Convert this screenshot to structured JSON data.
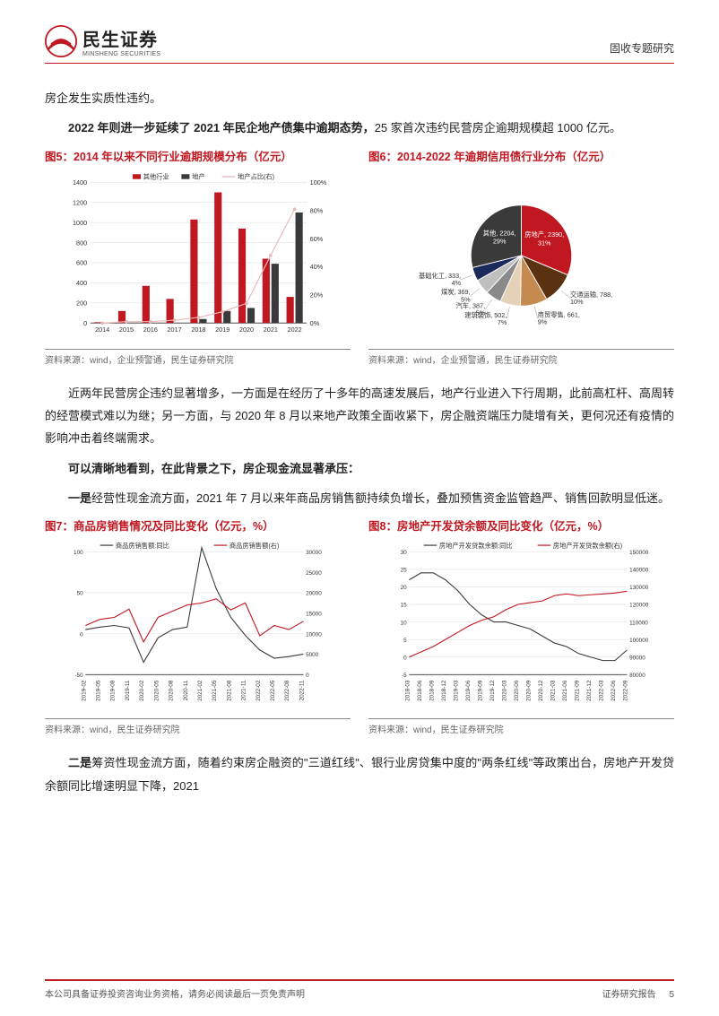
{
  "header": {
    "logo_main": "民生证券",
    "logo_sub": "MINSHENG SECURITIES",
    "right": "固收专题研究"
  },
  "para1": "房企发生实质性违约。",
  "para2a": "2022 年则进一步延续了 2021 年民企地产债集中逾期态势，",
  "para2b": "25 家首次违约民营房企逾期规模超 1000 亿元。",
  "chart5": {
    "title": "图5：2014 年以来不同行业逾期规模分布（亿元）",
    "type": "bar+line",
    "legend": [
      "其他行业",
      "地产",
      "地产占比(右)"
    ],
    "legend_colors": [
      "#c01720",
      "#3a3a3a",
      "#e9b9ba"
    ],
    "categories": [
      "2014",
      "2015",
      "2016",
      "2017",
      "2018",
      "2019",
      "2020",
      "2021",
      "2022"
    ],
    "series_other": [
      8,
      120,
      370,
      240,
      1030,
      1300,
      940,
      640,
      260
    ],
    "series_realestate": [
      0,
      0,
      0,
      0,
      40,
      120,
      150,
      590,
      1100
    ],
    "series_ratio_pct": [
      0,
      1,
      1,
      2,
      4,
      8,
      14,
      48,
      81
    ],
    "y1_max": 1400,
    "y1_step": 200,
    "y2_max": 100,
    "y2_step": 20,
    "bar_colors": [
      "#c01720",
      "#3a3a3a"
    ],
    "line_color": "#e9b9ba",
    "grid_color": "#d8d8d8",
    "axis_fontsize": 8,
    "source": "资料来源：wind，企业预警通，民生证券研究院"
  },
  "chart6": {
    "title": "图6：2014-2022 年逾期信用债行业分布（亿元）",
    "type": "pie",
    "slices": [
      {
        "label": "房地产, 2390, 31%",
        "value": 2390,
        "color": "#c01720"
      },
      {
        "label": "交通运输, 788, 10%",
        "value": 788,
        "color": "#5a3210"
      },
      {
        "label": "商贸零售, 661, 9%",
        "value": 661,
        "color": "#c58a50"
      },
      {
        "label": "建筑装饰, 502, 7%",
        "value": 502,
        "color": "#e5d0b8"
      },
      {
        "label": "汽车, 387, 5%",
        "value": 387,
        "color": "#8a8a8a"
      },
      {
        "label": "煤炭, 369, 5%",
        "value": 369,
        "color": "#bfbfbf"
      },
      {
        "label": "基础化工, 333, 4%",
        "value": 333,
        "color": "#1a2a5a"
      },
      {
        "label": "其他, 2204, 29%",
        "value": 2204,
        "color": "#3a3a3a"
      }
    ],
    "label_fontsize": 8,
    "label_color": "#ffffff",
    "label_color_alt": "#333333",
    "source": "资料来源：wind，企业预警通，民生证券研究院"
  },
  "para3": "近两年民营房企违约显著增多，一方面是在经历了十多年的高速发展后，地产行业进入下行周期，此前高杠杆、高周转的经营模式难以为继；另一方面，与 2020 年 8 月以来地产政策全面收紧下，房企融资端压力陡增有关，更何况还有疫情的影响冲击着终端需求。",
  "para4": "可以清晰地看到，在此背景之下，房企现金流显著承压：",
  "para5a": "一是",
  "para5b": "经营性现金流方面，2021 年 7 月以来年商品房销售额持续负增长，叠加预售资金监管趋严、销售回款明显低迷。",
  "chart7": {
    "title": "图7：商品房销售情况及同比变化（亿元，%）",
    "type": "dual-line",
    "legend": [
      "商品房销售额:同比",
      "商品房销售额(右)"
    ],
    "legend_colors": [
      "#3a3a3a",
      "#c01720"
    ],
    "x_labels": [
      "2019-02",
      "2019-05",
      "2019-08",
      "2019-11",
      "2020-02",
      "2020-05",
      "2020-08",
      "2020-11",
      "2021-02",
      "2021-05",
      "2021-08",
      "2021-11",
      "2022-02",
      "2022-05",
      "2022-08",
      "2022-11"
    ],
    "series_yoy": [
      5,
      8,
      10,
      7,
      -35,
      -5,
      5,
      8,
      105,
      55,
      20,
      -2,
      -20,
      -30,
      -28,
      -25
    ],
    "series_amt": [
      12000,
      13500,
      14000,
      16000,
      8000,
      14000,
      15500,
      17000,
      17500,
      18500,
      15800,
      17500,
      9500,
      12000,
      11000,
      13000
    ],
    "y1_min": -50,
    "y1_max": 100,
    "y1_step": 50,
    "y2_min": 0,
    "y2_max": 30000,
    "y2_step": 5000,
    "line_colors": [
      "#3a3a3a",
      "#c01720"
    ],
    "grid_color": "#d8d8d8",
    "axis_fontsize": 7,
    "source": "资料来源：wind，民生证券研究院"
  },
  "chart8": {
    "title": "图8：房地产开发贷余额及同比变化（亿元，%）",
    "type": "dual-line",
    "legend": [
      "房地产开发贷款余额:同比",
      "房地产开发贷款余额(右)"
    ],
    "legend_colors": [
      "#3a3a3a",
      "#c01720"
    ],
    "x_labels": [
      "2018-03",
      "2018-06",
      "2018-09",
      "2018-12",
      "2019-03",
      "2019-06",
      "2019-09",
      "2019-12",
      "2020-03",
      "2020-06",
      "2020-09",
      "2020-12",
      "2021-03",
      "2021-06",
      "2021-09",
      "2021-12",
      "2022-03",
      "2022-06",
      "2022-09"
    ],
    "series_yoy": [
      22,
      24,
      24,
      22,
      19,
      15,
      12,
      10,
      10,
      9,
      8,
      6,
      4,
      3,
      1,
      0,
      -1,
      -1,
      2
    ],
    "series_amt": [
      90000,
      93000,
      96000,
      100000,
      104000,
      108000,
      111000,
      113000,
      117000,
      120000,
      121000,
      122000,
      125000,
      126000,
      125000,
      125500,
      126000,
      126500,
      127500
    ],
    "y1_min": -5,
    "y1_max": 30,
    "y1_step": 5,
    "y2_min": 80000,
    "y2_max": 150000,
    "y2_step": 10000,
    "line_colors": [
      "#3a3a3a",
      "#c01720"
    ],
    "grid_color": "#d8d8d8",
    "axis_fontsize": 7,
    "source": "资料来源：wind，民生证券研究院"
  },
  "para6a": "二是",
  "para6b": "筹资性现金流方面，随着约束房企融资的\"三道红线\"、银行业房贷集中度的\"两条红线\"等政策出台，房地产开发贷余额同比增速明显下降，2021",
  "footer": {
    "left": "本公司具备证券投资咨询业务资格，请务必阅读最后一页免责声明",
    "right": "证券研究报告",
    "page": "5"
  }
}
